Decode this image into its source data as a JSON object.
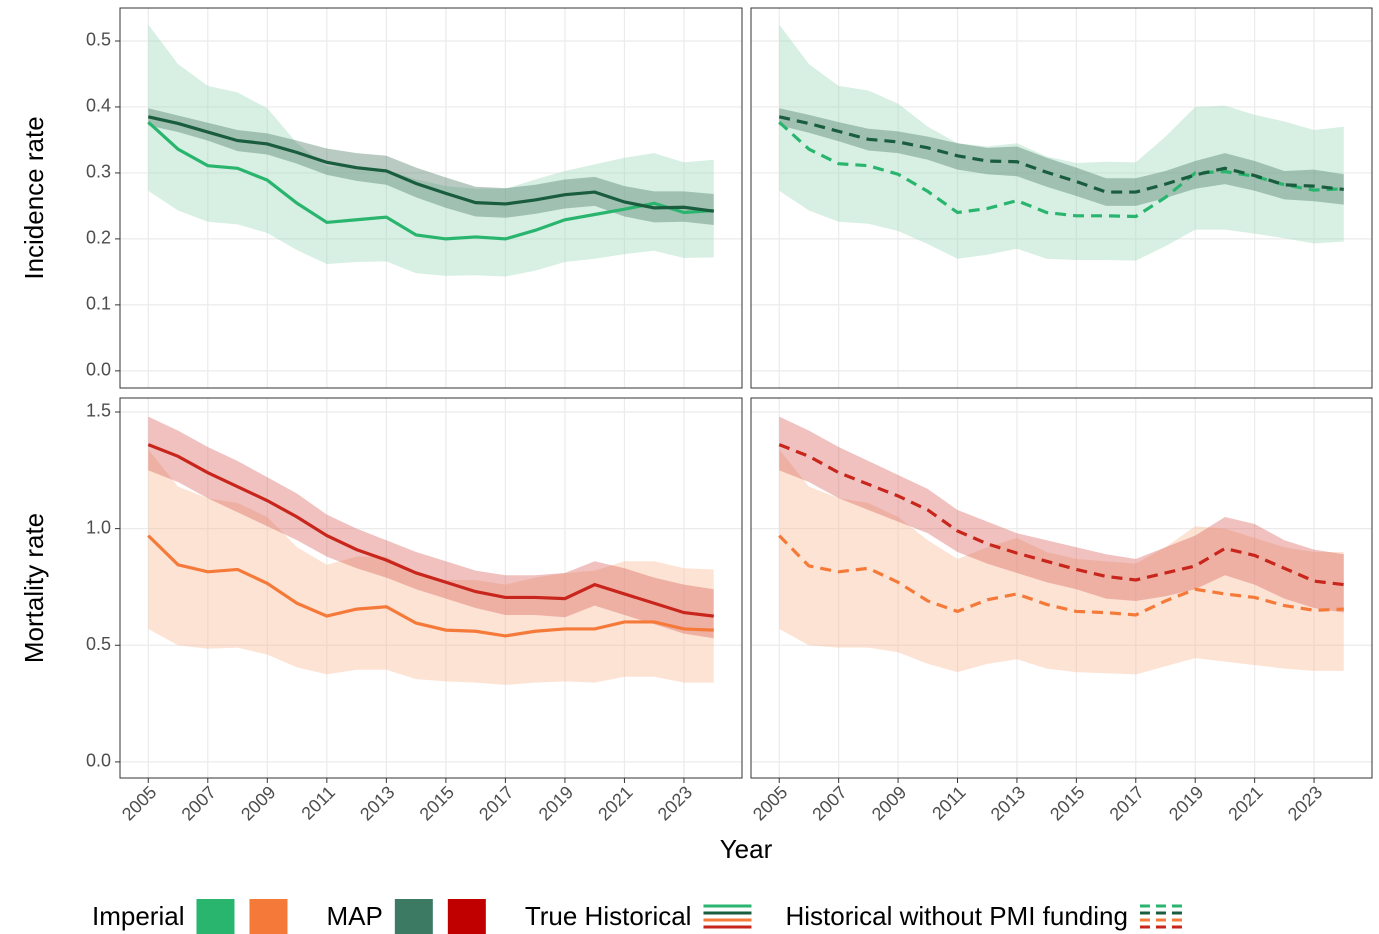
{
  "chart_data": [
    {
      "type": "line",
      "ylabel": "Incidence rate",
      "x": [
        2005,
        2006,
        2007,
        2008,
        2009,
        2010,
        2011,
        2012,
        2013,
        2014,
        2015,
        2016,
        2017,
        2018,
        2019,
        2020,
        2021,
        2022,
        2023,
        2024
      ],
      "xlim": [
        2004.05,
        2024.95
      ],
      "xticks": [
        2005,
        2007,
        2009,
        2011,
        2013,
        2015,
        2017,
        2019,
        2021,
        2023
      ],
      "ylim": [
        -0.026,
        0.55
      ],
      "yticks": [
        {
          "value": 0,
          "label": "0.0"
        },
        0.1,
        0.2,
        0.3,
        0.4,
        0.5
      ],
      "grid": true,
      "series": [
        {
          "color": "#2ab56f",
          "fill": "#9bd9b9",
          "linestyle": "solid",
          "values": [
            0.377,
            0.336,
            0.311,
            0.307,
            0.289,
            0.254,
            0.225,
            0.229,
            0.233,
            0.206,
            0.2,
            0.203,
            0.2,
            0.213,
            0.229,
            0.237,
            0.245,
            0.254,
            0.24,
            0.243
          ],
          "upper": [
            0.525,
            0.465,
            0.432,
            0.422,
            0.398,
            0.345,
            0.31,
            0.31,
            0.305,
            0.29,
            0.28,
            0.276,
            0.276,
            0.29,
            0.303,
            0.313,
            0.323,
            0.33,
            0.316,
            0.32
          ],
          "lower": [
            0.273,
            0.243,
            0.226,
            0.222,
            0.209,
            0.183,
            0.162,
            0.165,
            0.166,
            0.148,
            0.144,
            0.145,
            0.143,
            0.152,
            0.165,
            0.17,
            0.177,
            0.182,
            0.171,
            0.172
          ]
        },
        {
          "color": "#1a5c3e",
          "fill": "#4d7a66",
          "linestyle": "solid",
          "values": [
            0.385,
            0.375,
            0.362,
            0.349,
            0.344,
            0.331,
            0.316,
            0.308,
            0.303,
            0.284,
            0.269,
            0.255,
            0.253,
            0.259,
            0.267,
            0.271,
            0.256,
            0.247,
            0.248,
            0.242
          ],
          "upper": [
            0.398,
            0.387,
            0.376,
            0.365,
            0.36,
            0.349,
            0.337,
            0.33,
            0.326,
            0.308,
            0.293,
            0.279,
            0.277,
            0.282,
            0.29,
            0.294,
            0.28,
            0.272,
            0.272,
            0.268
          ],
          "lower": [
            0.372,
            0.362,
            0.349,
            0.333,
            0.328,
            0.314,
            0.297,
            0.288,
            0.282,
            0.263,
            0.247,
            0.234,
            0.232,
            0.238,
            0.246,
            0.25,
            0.234,
            0.225,
            0.226,
            0.221
          ]
        }
      ]
    },
    {
      "type": "line",
      "x": [
        2005,
        2006,
        2007,
        2008,
        2009,
        2010,
        2011,
        2012,
        2013,
        2014,
        2015,
        2016,
        2017,
        2018,
        2019,
        2020,
        2021,
        2022,
        2023,
        2024
      ],
      "xlim": [
        2004.05,
        2024.95
      ],
      "xticks": [
        2005,
        2007,
        2009,
        2011,
        2013,
        2015,
        2017,
        2019,
        2021,
        2023
      ],
      "ylim": [
        -0.026,
        0.55
      ],
      "yticks": [
        {
          "value": 0,
          "label": "0.0"
        },
        0.1,
        0.2,
        0.3,
        0.4,
        0.5
      ],
      "grid": true,
      "series": [
        {
          "color": "#2ab56f",
          "fill": "#9bd9b9",
          "linestyle": "dashed",
          "values": [
            0.377,
            0.336,
            0.314,
            0.311,
            0.298,
            0.272,
            0.24,
            0.246,
            0.258,
            0.24,
            0.235,
            0.235,
            0.234,
            0.263,
            0.3,
            0.302,
            0.295,
            0.282,
            0.274,
            0.276
          ],
          "upper": [
            0.525,
            0.465,
            0.432,
            0.425,
            0.405,
            0.37,
            0.345,
            0.34,
            0.345,
            0.325,
            0.315,
            0.317,
            0.316,
            0.355,
            0.4,
            0.402,
            0.388,
            0.378,
            0.365,
            0.37
          ],
          "lower": [
            0.273,
            0.243,
            0.226,
            0.223,
            0.212,
            0.192,
            0.17,
            0.176,
            0.185,
            0.17,
            0.168,
            0.168,
            0.167,
            0.189,
            0.214,
            0.214,
            0.208,
            0.201,
            0.193,
            0.196
          ]
        },
        {
          "color": "#1a5c3e",
          "fill": "#4d7a66",
          "linestyle": "dashed",
          "values": [
            0.385,
            0.375,
            0.363,
            0.351,
            0.347,
            0.338,
            0.326,
            0.318,
            0.317,
            0.301,
            0.287,
            0.271,
            0.271,
            0.283,
            0.297,
            0.307,
            0.296,
            0.282,
            0.28,
            0.275
          ],
          "upper": [
            0.398,
            0.388,
            0.377,
            0.367,
            0.363,
            0.355,
            0.345,
            0.338,
            0.34,
            0.323,
            0.308,
            0.292,
            0.292,
            0.303,
            0.318,
            0.33,
            0.318,
            0.303,
            0.305,
            0.298
          ],
          "lower": [
            0.372,
            0.361,
            0.348,
            0.334,
            0.33,
            0.32,
            0.305,
            0.298,
            0.295,
            0.279,
            0.265,
            0.25,
            0.25,
            0.262,
            0.276,
            0.283,
            0.273,
            0.26,
            0.257,
            0.252
          ]
        }
      ]
    },
    {
      "type": "line",
      "ylabel": "Mortality rate",
      "x": [
        2005,
        2006,
        2007,
        2008,
        2009,
        2010,
        2011,
        2012,
        2013,
        2014,
        2015,
        2016,
        2017,
        2018,
        2019,
        2020,
        2021,
        2022,
        2023,
        2024
      ],
      "xlim": [
        2004.05,
        2024.95
      ],
      "xticks": [
        2005,
        2007,
        2009,
        2011,
        2013,
        2015,
        2017,
        2019,
        2021,
        2023
      ],
      "ylim": [
        -0.069,
        1.56
      ],
      "yticks": [
        {
          "value": 0,
          "label": "0.0"
        },
        0.5,
        {
          "value": 1,
          "label": "1.0"
        },
        1.5
      ],
      "grid": true,
      "series": [
        {
          "color": "#f57a3a",
          "fill": "#fbb894",
          "linestyle": "solid",
          "values": [
            0.97,
            0.845,
            0.815,
            0.825,
            0.765,
            0.68,
            0.625,
            0.655,
            0.665,
            0.595,
            0.565,
            0.56,
            0.54,
            0.56,
            0.57,
            0.57,
            0.6,
            0.6,
            0.57,
            0.565
          ],
          "upper": [
            1.34,
            1.18,
            1.13,
            1.11,
            1.05,
            0.92,
            0.845,
            0.88,
            0.88,
            0.81,
            0.78,
            0.78,
            0.76,
            0.79,
            0.81,
            0.82,
            0.86,
            0.86,
            0.83,
            0.825
          ],
          "lower": [
            0.57,
            0.5,
            0.485,
            0.49,
            0.46,
            0.405,
            0.375,
            0.395,
            0.395,
            0.355,
            0.345,
            0.34,
            0.33,
            0.34,
            0.345,
            0.34,
            0.365,
            0.365,
            0.34,
            0.34
          ]
        },
        {
          "color": "#c8261c",
          "fill": "#d9635c",
          "linestyle": "solid",
          "values": [
            1.36,
            1.31,
            1.24,
            1.18,
            1.12,
            1.05,
            0.97,
            0.91,
            0.865,
            0.81,
            0.77,
            0.73,
            0.705,
            0.705,
            0.7,
            0.76,
            0.72,
            0.68,
            0.64,
            0.625
          ],
          "upper": [
            1.48,
            1.42,
            1.35,
            1.29,
            1.22,
            1.15,
            1.06,
            1.0,
            0.95,
            0.9,
            0.86,
            0.82,
            0.8,
            0.8,
            0.81,
            0.86,
            0.83,
            0.79,
            0.76,
            0.74
          ],
          "lower": [
            1.25,
            1.2,
            1.13,
            1.07,
            1.01,
            0.95,
            0.88,
            0.83,
            0.79,
            0.74,
            0.7,
            0.66,
            0.63,
            0.63,
            0.62,
            0.67,
            0.63,
            0.59,
            0.55,
            0.53
          ]
        }
      ]
    },
    {
      "type": "line",
      "x": [
        2005,
        2006,
        2007,
        2008,
        2009,
        2010,
        2011,
        2012,
        2013,
        2014,
        2015,
        2016,
        2017,
        2018,
        2019,
        2020,
        2021,
        2022,
        2023,
        2024
      ],
      "xlim": [
        2004.05,
        2024.95
      ],
      "xticks": [
        2005,
        2007,
        2009,
        2011,
        2013,
        2015,
        2017,
        2019,
        2021,
        2023
      ],
      "ylim": [
        -0.069,
        1.56
      ],
      "yticks": [
        {
          "value": 0,
          "label": "0.0"
        },
        0.5,
        {
          "value": 1,
          "label": "1.0"
        },
        1.5
      ],
      "grid": true,
      "series": [
        {
          "color": "#f57a3a",
          "fill": "#fbb894",
          "linestyle": "dashed",
          "values": [
            0.97,
            0.84,
            0.815,
            0.83,
            0.77,
            0.69,
            0.645,
            0.695,
            0.72,
            0.675,
            0.645,
            0.64,
            0.63,
            0.69,
            0.74,
            0.72,
            0.705,
            0.67,
            0.65,
            0.655
          ],
          "upper": [
            1.34,
            1.18,
            1.13,
            1.11,
            1.05,
            0.95,
            0.87,
            0.92,
            0.96,
            0.9,
            0.87,
            0.86,
            0.85,
            0.92,
            1.01,
            1.0,
            0.96,
            0.92,
            0.9,
            0.9
          ],
          "lower": [
            0.57,
            0.5,
            0.49,
            0.49,
            0.47,
            0.42,
            0.385,
            0.42,
            0.44,
            0.4,
            0.385,
            0.38,
            0.375,
            0.41,
            0.445,
            0.43,
            0.415,
            0.4,
            0.39,
            0.39
          ]
        },
        {
          "color": "#c8261c",
          "fill": "#d9635c",
          "linestyle": "dashed",
          "values": [
            1.36,
            1.31,
            1.24,
            1.19,
            1.14,
            1.08,
            0.99,
            0.935,
            0.895,
            0.86,
            0.825,
            0.795,
            0.78,
            0.81,
            0.84,
            0.915,
            0.885,
            0.83,
            0.775,
            0.76
          ],
          "upper": [
            1.48,
            1.42,
            1.35,
            1.29,
            1.23,
            1.17,
            1.08,
            1.03,
            0.98,
            0.95,
            0.92,
            0.89,
            0.87,
            0.92,
            0.97,
            1.05,
            1.02,
            0.95,
            0.91,
            0.89
          ],
          "lower": [
            1.25,
            1.2,
            1.13,
            1.08,
            1.03,
            0.98,
            0.9,
            0.85,
            0.81,
            0.77,
            0.74,
            0.7,
            0.69,
            0.71,
            0.74,
            0.8,
            0.76,
            0.7,
            0.66,
            0.64
          ]
        }
      ]
    }
  ],
  "xlabel": "Year",
  "legend": [
    {
      "label": "Imperial",
      "colors": [
        "#2ab56f",
        "#f57a3a"
      ]
    },
    {
      "label": "MAP",
      "colors": [
        "#3d7a63",
        "#c00000"
      ]
    },
    {
      "label": "True Historical",
      "line_colors": [
        "#2ab56f",
        "#1a5c3e",
        "#f57a3a",
        "#c8261c"
      ],
      "linestyle": "solid"
    },
    {
      "label": "Historical without PMI funding",
      "line_colors": [
        "#2ab56f",
        "#1a5c3e",
        "#f57a3a",
        "#c8261c"
      ],
      "linestyle": "dashed"
    }
  ]
}
